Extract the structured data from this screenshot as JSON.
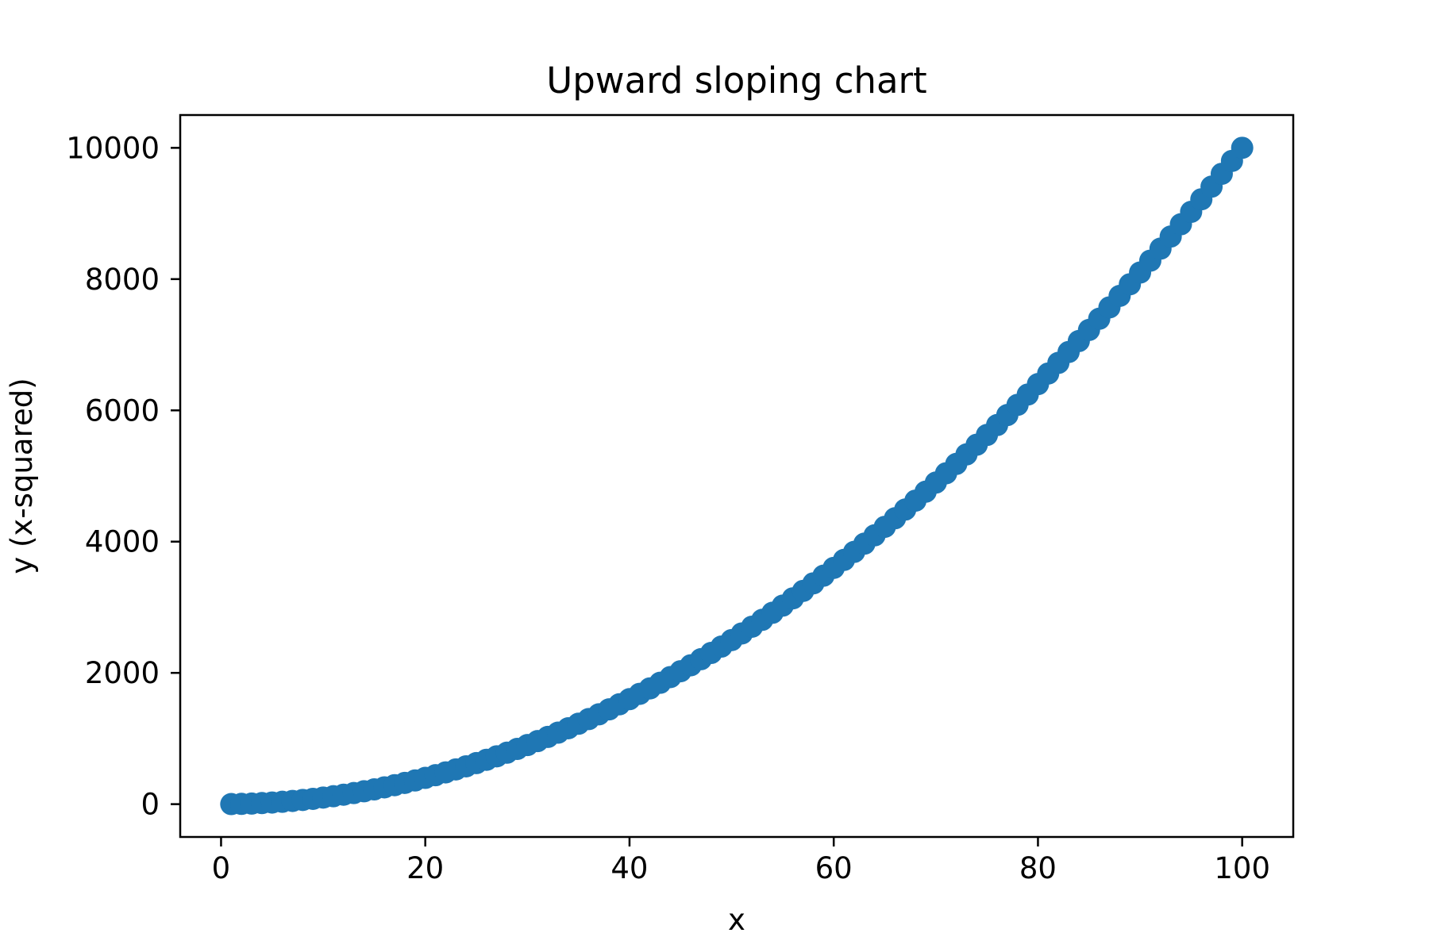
{
  "chart_data": {
    "type": "scatter",
    "title": "Upward sloping chart",
    "xlabel": "x",
    "ylabel": "y (x-squared)",
    "xlim": [
      -4,
      105
    ],
    "ylim": [
      -500,
      10500
    ],
    "xticks": [
      0,
      20,
      40,
      60,
      80,
      100
    ],
    "yticks": [
      0,
      2000,
      4000,
      6000,
      8000,
      10000
    ],
    "grid": false,
    "legend": "none",
    "series": [
      {
        "color": "#1f77b4",
        "marker": "circle",
        "x": [
          1,
          2,
          3,
          4,
          5,
          6,
          7,
          8,
          9,
          10,
          11,
          12,
          13,
          14,
          15,
          16,
          17,
          18,
          19,
          20,
          21,
          22,
          23,
          24,
          25,
          26,
          27,
          28,
          29,
          30,
          31,
          32,
          33,
          34,
          35,
          36,
          37,
          38,
          39,
          40,
          41,
          42,
          43,
          44,
          45,
          46,
          47,
          48,
          49,
          50,
          51,
          52,
          53,
          54,
          55,
          56,
          57,
          58,
          59,
          60,
          61,
          62,
          63,
          64,
          65,
          66,
          67,
          68,
          69,
          70,
          71,
          72,
          73,
          74,
          75,
          76,
          77,
          78,
          79,
          80,
          81,
          82,
          83,
          84,
          85,
          86,
          87,
          88,
          89,
          90,
          91,
          92,
          93,
          94,
          95,
          96,
          97,
          98,
          99,
          100
        ],
        "y": [
          1,
          4,
          9,
          16,
          25,
          36,
          49,
          64,
          81,
          100,
          121,
          144,
          169,
          196,
          225,
          256,
          289,
          324,
          361,
          400,
          441,
          484,
          529,
          576,
          625,
          676,
          729,
          784,
          841,
          900,
          961,
          1024,
          1089,
          1156,
          1225,
          1296,
          1369,
          1444,
          1521,
          1600,
          1681,
          1764,
          1849,
          1936,
          2025,
          2116,
          2209,
          2304,
          2401,
          2500,
          2601,
          2704,
          2809,
          2916,
          3025,
          3136,
          3249,
          3364,
          3481,
          3600,
          3721,
          3844,
          3969,
          4096,
          4225,
          4356,
          4489,
          4624,
          4761,
          4900,
          5041,
          5184,
          5329,
          5476,
          5625,
          5776,
          5929,
          6084,
          6241,
          6400,
          6561,
          6724,
          6889,
          7056,
          7225,
          7396,
          7569,
          7744,
          7921,
          8100,
          8281,
          8464,
          8649,
          8836,
          9025,
          9216,
          9409,
          9604,
          9801,
          10000
        ]
      }
    ]
  }
}
